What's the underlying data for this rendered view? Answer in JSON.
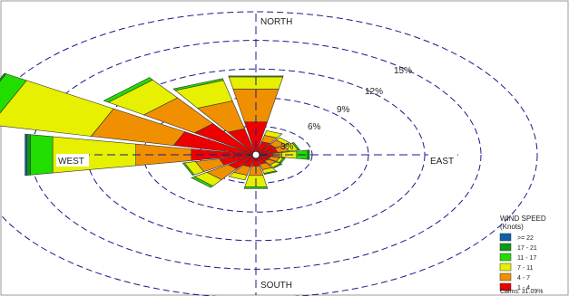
{
  "chart_data": {
    "type": "wind_rose",
    "directions": {
      "north": "NORTH",
      "south": "SOUTH",
      "east": "EAST",
      "west": "WEST"
    },
    "ring_labels": [
      "3%",
      "6%",
      "9%",
      "12%",
      "15%"
    ],
    "ring_values": [
      3,
      6,
      9,
      12,
      15
    ],
    "rmax": 15,
    "sectors": [
      "N",
      "NNE",
      "NE",
      "ENE",
      "E",
      "ESE",
      "SE",
      "SSE",
      "S",
      "SSW",
      "SW",
      "WSW",
      "W",
      "WNW",
      "NW",
      "NNW"
    ],
    "legend_title_1": "WIND SPEED",
    "legend_title_2": "(Knots)",
    "calms_label": "Calms: 31.09%",
    "series": [
      {
        "name": "1 - 4",
        "color": "#ee0000",
        "values": [
          3.5,
          1.4,
          1.3,
          1.2,
          0.9,
          0.8,
          0.8,
          1.0,
          1.2,
          1.3,
          1.8,
          2.0,
          3.5,
          4.5,
          4.0,
          2.8
        ]
      },
      {
        "name": "4 - 7",
        "color": "#f09000",
        "values": [
          3.5,
          0.7,
          0.6,
          0.6,
          0.5,
          0.5,
          0.5,
          0.6,
          1.0,
          0.9,
          1.4,
          1.3,
          3.0,
          4.5,
          3.3,
          3.0
        ]
      },
      {
        "name": "7 - 11",
        "color": "#e6f000",
        "values": [
          1.3,
          0.5,
          0.3,
          0.5,
          0.8,
          0.2,
          0.3,
          0.4,
          1.2,
          0.5,
          0.8,
          0.6,
          4.5,
          5.5,
          2.3,
          2.2
        ]
      },
      {
        "name": "11 - 17",
        "color": "#22dd00",
        "values": [
          0.1,
          0.0,
          0.0,
          0.1,
          0.6,
          0.1,
          0.1,
          0.1,
          0.2,
          0.0,
          0.2,
          0.1,
          1.2,
          1.3,
          0.3,
          0.2
        ]
      },
      {
        "name": "17 - 21",
        "color": "#0a9a14",
        "values": [
          0.0,
          0.0,
          0.0,
          0.0,
          0.1,
          0.0,
          0.0,
          0.0,
          0.0,
          0.0,
          0.0,
          0.0,
          0.2,
          0.1,
          0.0,
          0.0
        ]
      },
      {
        "name": ">= 22",
        "color": "#1060a8",
        "values": [
          0.0,
          0.0,
          0.0,
          0.0,
          0.0,
          0.0,
          0.0,
          0.0,
          0.0,
          0.0,
          0.0,
          0.0,
          0.1,
          0.0,
          0.0,
          0.0
        ]
      }
    ]
  }
}
